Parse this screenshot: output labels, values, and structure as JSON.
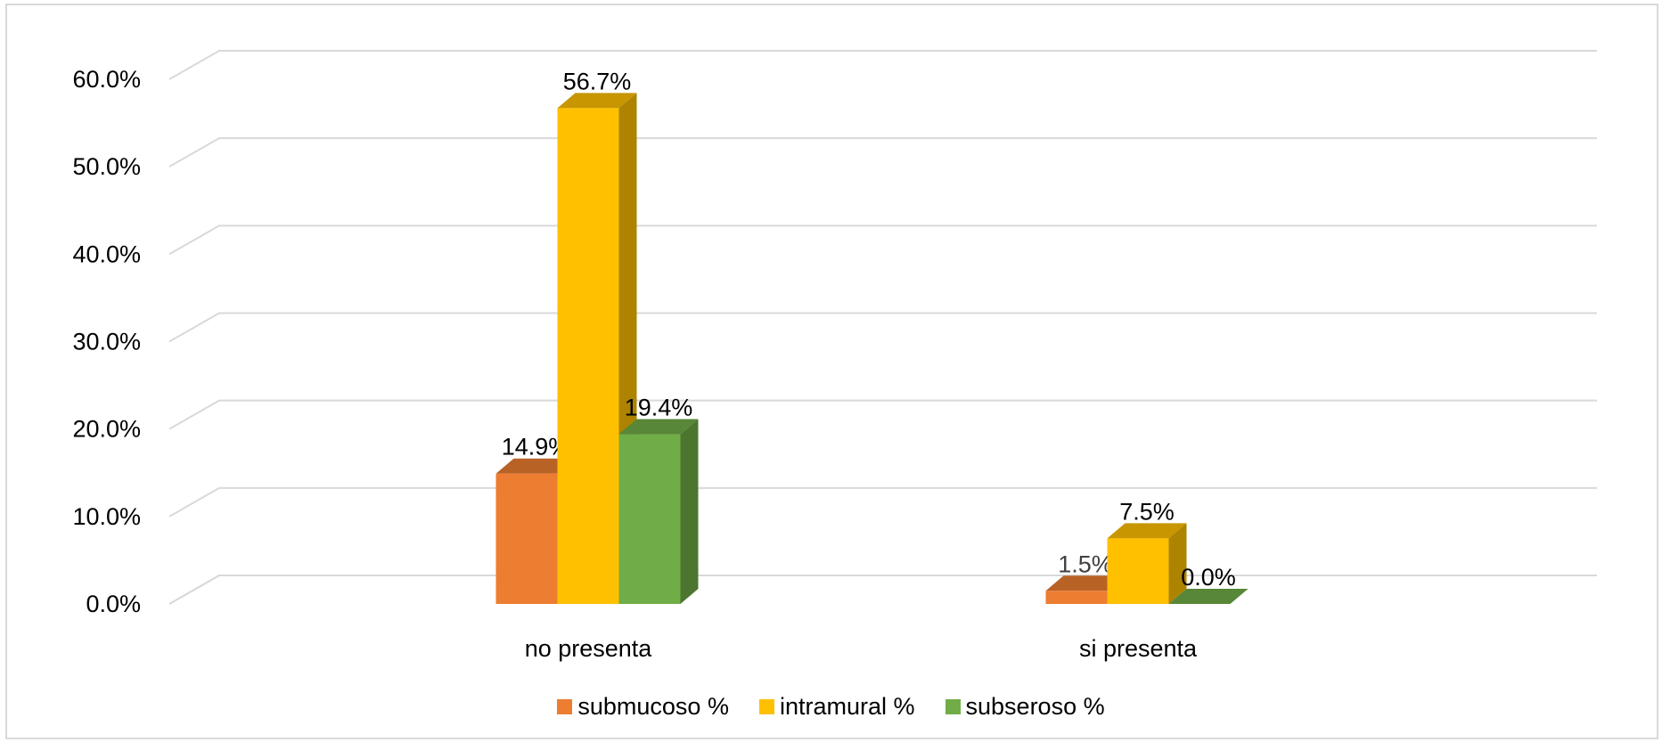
{
  "chart_data": {
    "type": "bar",
    "style": "3d-clustered-column",
    "categories": [
      "no presenta",
      "si presenta"
    ],
    "series": [
      {
        "name": "submucoso %",
        "values": [
          14.9,
          1.5
        ],
        "labels": [
          "14.9%",
          "1.5%"
        ],
        "color": "#ED7D31"
      },
      {
        "name": "intramural %",
        "values": [
          56.7,
          7.5
        ],
        "labels": [
          "56.7%",
          "7.5%"
        ],
        "color": "#FFC000"
      },
      {
        "name": "subseroso %",
        "values": [
          19.4,
          0.0
        ],
        "labels": [
          "19.4%",
          "0.0%"
        ],
        "color": "#70AD47"
      }
    ],
    "y_ticks": [
      "0.0%",
      "10.0%",
      "20.0%",
      "30.0%",
      "40.0%",
      "50.0%",
      "60.0%"
    ],
    "ylim": [
      0,
      60
    ],
    "grid": true,
    "legend_position": "bottom"
  }
}
